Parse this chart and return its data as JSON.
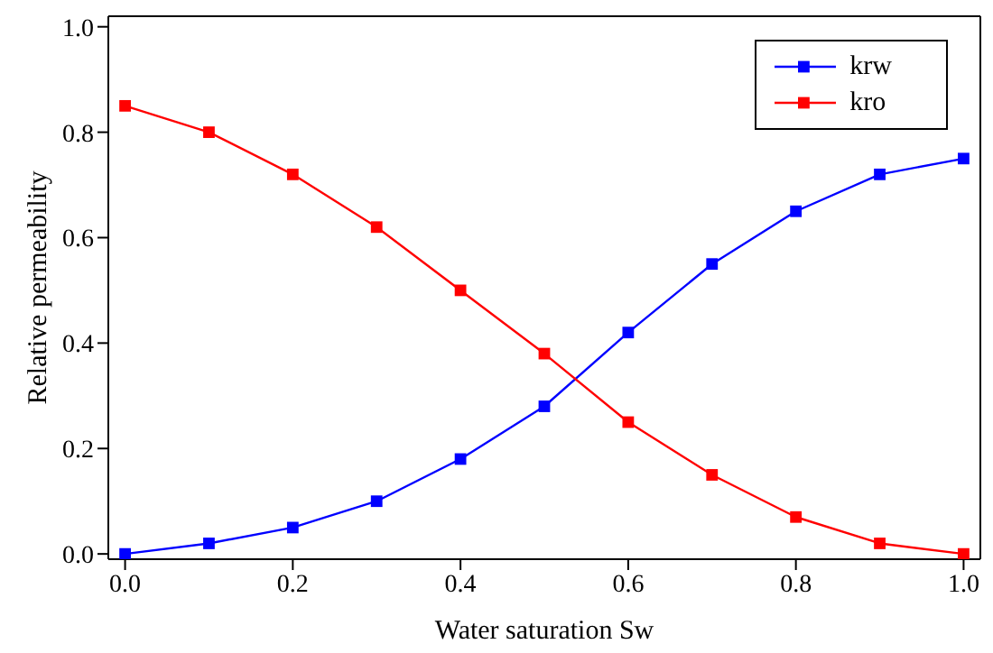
{
  "chart_data": {
    "type": "line",
    "xlabel": "Water saturation Sw",
    "ylabel": "Relative permeability",
    "x": [
      0,
      0.1,
      0.2,
      0.3,
      0.4,
      0.5,
      0.6,
      0.7,
      0.8,
      0.9,
      1.0
    ],
    "series": [
      {
        "name": "krw",
        "color": "#0000ff",
        "values": [
          0,
          0.02,
          0.05,
          0.1,
          0.18,
          0.28,
          0.42,
          0.55,
          0.65,
          0.72,
          0.75
        ]
      },
      {
        "name": "kro",
        "color": "#ff0000",
        "values": [
          0.85,
          0.8,
          0.72,
          0.62,
          0.5,
          0.38,
          0.25,
          0.15,
          0.07,
          0.02,
          0.0
        ]
      }
    ],
    "xlim": [
      -0.02,
      1.02
    ],
    "ylim": [
      -0.01,
      1.02
    ],
    "xticks": [
      {
        "value": 0,
        "label": "0.0"
      },
      {
        "value": 0.2,
        "label": "0.2"
      },
      {
        "value": 0.4,
        "label": "0.4"
      },
      {
        "value": 0.6,
        "label": "0.6"
      },
      {
        "value": 0.8,
        "label": "0.8"
      },
      {
        "value": 1.0,
        "label": "1.0"
      }
    ],
    "yticks": [
      {
        "value": 0,
        "label": "0.0"
      },
      {
        "value": 0.2,
        "label": "0.2"
      },
      {
        "value": 0.4,
        "label": "0.4"
      },
      {
        "value": 0.6,
        "label": "0.6"
      },
      {
        "value": 0.8,
        "label": "0.8"
      },
      {
        "value": 1.0,
        "label": "1.0"
      }
    ],
    "grid": false,
    "legend": "top right",
    "marker": "square",
    "line_style": "solid"
  }
}
